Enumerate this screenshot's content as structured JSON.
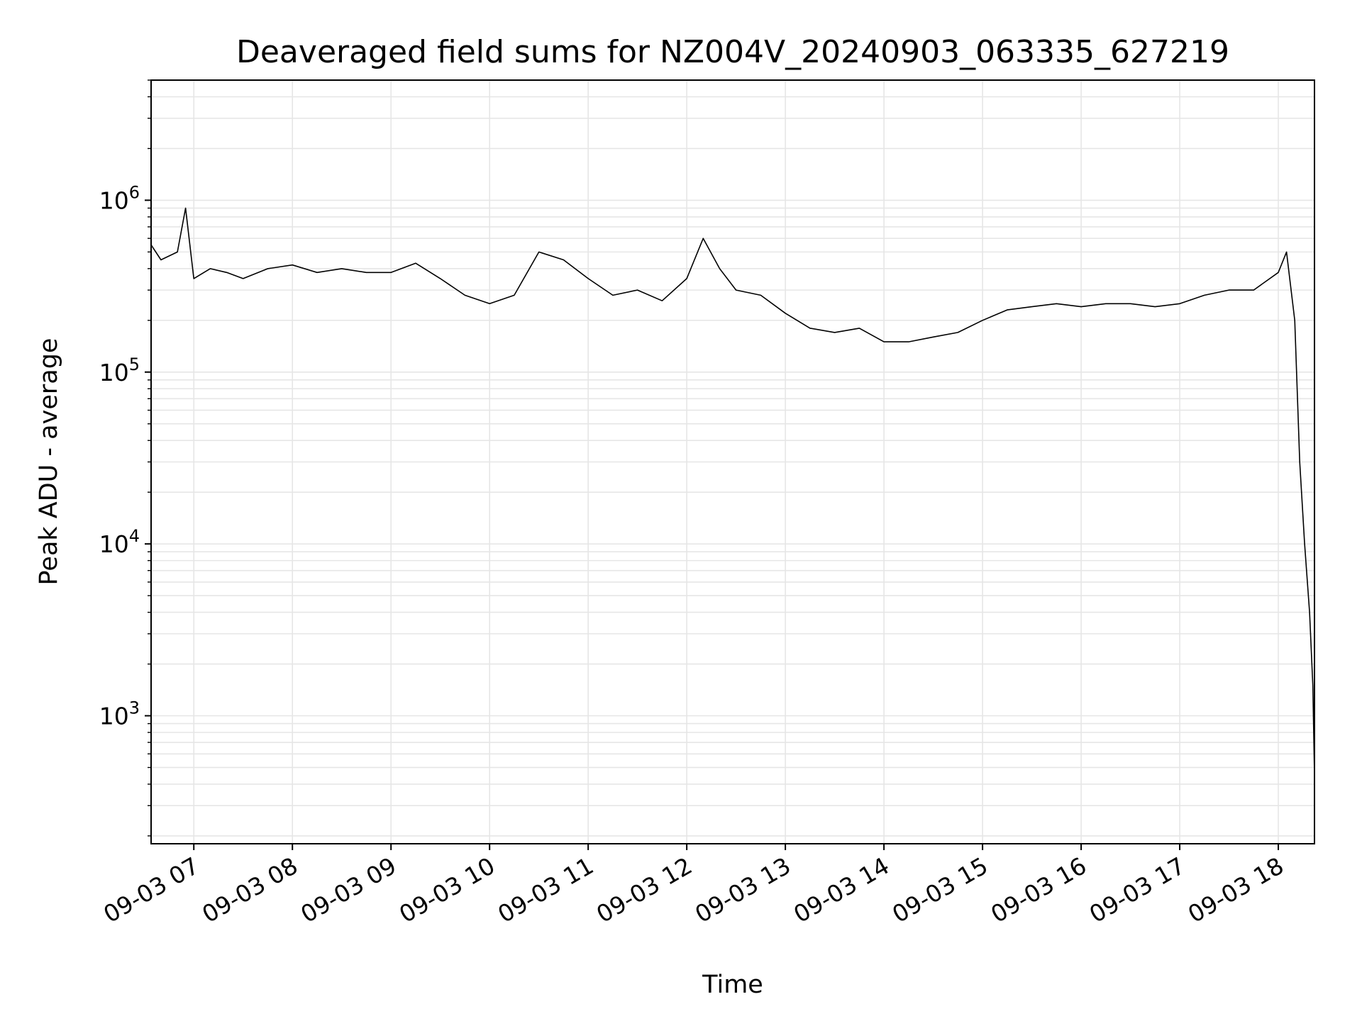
{
  "chart_data": {
    "type": "line",
    "title": "Deaveraged field sums for NZ004V_20240903_063335_627219",
    "xlabel": "Time",
    "ylabel": "Peak ADU - average",
    "yscale": "log",
    "ylim": [
      180,
      5000000
    ],
    "xlim": [
      "2024-09-03T06:34",
      "2024-09-03T18:22"
    ],
    "grid": true,
    "line_color": "#000000",
    "x_ticks": [
      {
        "label": "09-03 07",
        "t": "2024-09-03T07:00"
      },
      {
        "label": "09-03 08",
        "t": "2024-09-03T08:00"
      },
      {
        "label": "09-03 09",
        "t": "2024-09-03T09:00"
      },
      {
        "label": "09-03 10",
        "t": "2024-09-03T10:00"
      },
      {
        "label": "09-03 11",
        "t": "2024-09-03T11:00"
      },
      {
        "label": "09-03 12",
        "t": "2024-09-03T12:00"
      },
      {
        "label": "09-03 13",
        "t": "2024-09-03T13:00"
      },
      {
        "label": "09-03 14",
        "t": "2024-09-03T14:00"
      },
      {
        "label": "09-03 15",
        "t": "2024-09-03T15:00"
      },
      {
        "label": "09-03 16",
        "t": "2024-09-03T16:00"
      },
      {
        "label": "09-03 17",
        "t": "2024-09-03T17:00"
      },
      {
        "label": "09-03 18",
        "t": "2024-09-03T18:00"
      }
    ],
    "y_ticks": [
      {
        "base": "10",
        "exp": "3",
        "value": 1000
      },
      {
        "base": "10",
        "exp": "4",
        "value": 10000
      },
      {
        "base": "10",
        "exp": "5",
        "value": 100000
      },
      {
        "base": "10",
        "exp": "6",
        "value": 1000000
      }
    ],
    "series": [
      {
        "x": [
          "2024-09-03T06:34",
          "2024-09-03T06:40",
          "2024-09-03T06:50",
          "2024-09-03T06:55",
          "2024-09-03T07:00",
          "2024-09-03T07:10",
          "2024-09-03T07:20",
          "2024-09-03T07:30",
          "2024-09-03T07:45",
          "2024-09-03T08:00",
          "2024-09-03T08:15",
          "2024-09-03T08:30",
          "2024-09-03T08:45",
          "2024-09-03T09:00",
          "2024-09-03T09:15",
          "2024-09-03T09:30",
          "2024-09-03T09:45",
          "2024-09-03T10:00",
          "2024-09-03T10:15",
          "2024-09-03T10:30",
          "2024-09-03T10:45",
          "2024-09-03T11:00",
          "2024-09-03T11:15",
          "2024-09-03T11:30",
          "2024-09-03T11:45",
          "2024-09-03T12:00",
          "2024-09-03T12:10",
          "2024-09-03T12:20",
          "2024-09-03T12:30",
          "2024-09-03T12:45",
          "2024-09-03T13:00",
          "2024-09-03T13:15",
          "2024-09-03T13:30",
          "2024-09-03T13:45",
          "2024-09-03T14:00",
          "2024-09-03T14:15",
          "2024-09-03T14:30",
          "2024-09-03T14:45",
          "2024-09-03T15:00",
          "2024-09-03T15:15",
          "2024-09-03T15:30",
          "2024-09-03T15:45",
          "2024-09-03T16:00",
          "2024-09-03T16:15",
          "2024-09-03T16:30",
          "2024-09-03T16:45",
          "2024-09-03T17:00",
          "2024-09-03T17:15",
          "2024-09-03T17:30",
          "2024-09-03T17:45",
          "2024-09-03T18:00",
          "2024-09-03T18:05",
          "2024-09-03T18:10",
          "2024-09-03T18:13",
          "2024-09-03T18:16",
          "2024-09-03T18:19",
          "2024-09-03T18:21",
          "2024-09-03T18:22"
        ],
        "y": [
          550000,
          450000,
          500000,
          900000,
          350000,
          400000,
          380000,
          350000,
          400000,
          420000,
          380000,
          400000,
          380000,
          380000,
          430000,
          350000,
          280000,
          250000,
          280000,
          500000,
          450000,
          350000,
          280000,
          300000,
          260000,
          350000,
          600000,
          400000,
          300000,
          280000,
          220000,
          180000,
          170000,
          180000,
          150000,
          150000,
          160000,
          170000,
          200000,
          230000,
          240000,
          250000,
          240000,
          250000,
          250000,
          240000,
          250000,
          280000,
          300000,
          300000,
          380000,
          500000,
          200000,
          30000,
          10000,
          4000,
          1500,
          450
        ]
      }
    ]
  }
}
